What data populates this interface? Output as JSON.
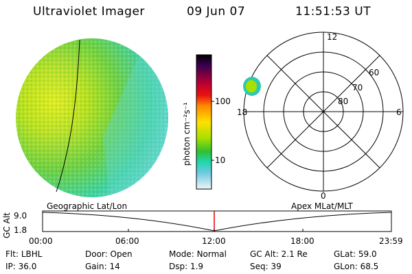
{
  "header": {
    "title": "Ultraviolet Imager",
    "date": "09 Jun 07",
    "time": "11:51:53 UT"
  },
  "colorbar": {
    "unit_label": "photon cm⁻²s⁻¹",
    "ticks": [
      "100",
      "10"
    ],
    "colors": [
      "#000000",
      "#5a0050",
      "#b0003a",
      "#e01010",
      "#ff8800",
      "#ffe000",
      "#a8e000",
      "#30c030",
      "#20d8b0",
      "#60c8e0",
      "#b8e0e8",
      "#e8f4f8"
    ]
  },
  "polar_plot": {
    "mlt_labels": {
      "top": "12",
      "left": "18",
      "right": "6",
      "bottom": "0"
    },
    "lat_labels": [
      "60",
      "70",
      "80"
    ]
  },
  "timeline": {
    "axis_label": "GC Alt",
    "y_ticks": [
      "9.0",
      "1.8"
    ],
    "left_caption": "Geographic Lat/Lon",
    "right_caption": "Apex MLat/MLT",
    "x_ticks": [
      "00:00",
      "06:00",
      "12:00",
      "18:00",
      "23:59"
    ],
    "marker_color": "#dd0000"
  },
  "status": {
    "row1": [
      {
        "key": "Flt:",
        "value": "LBHL"
      },
      {
        "key": "Door:",
        "value": "Open"
      },
      {
        "key": "Mode:",
        "value": "Normal"
      },
      {
        "key": "GC Alt:",
        "value": "2.1 Re"
      },
      {
        "key": "GLat:",
        "value": "59.0"
      }
    ],
    "row2": [
      {
        "key": "IP:",
        "value": "36.0"
      },
      {
        "key": "Gain:",
        "value": "14"
      },
      {
        "key": "Dsp:",
        "value": "1.9"
      },
      {
        "key": "Seq:",
        "value": "39"
      },
      {
        "key": "GLon:",
        "value": "68.5"
      }
    ]
  }
}
